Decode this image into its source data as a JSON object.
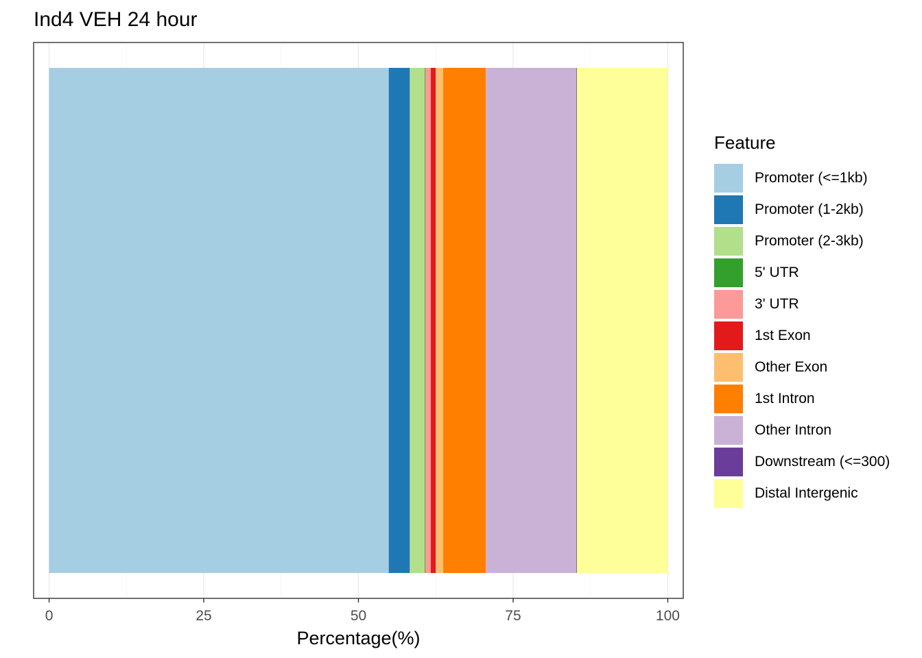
{
  "chart_data": {
    "type": "bar",
    "orientation": "horizontal",
    "stacked": true,
    "title": "Ind4 VEH 24 hour",
    "xlabel": "Percentage(%)",
    "ylabel": "",
    "xlim": [
      -2.5,
      102.5
    ],
    "xticks": [
      0,
      25,
      50,
      75,
      100
    ],
    "xtick_labels": [
      "0",
      "25",
      "50",
      "75",
      "100"
    ],
    "grid": true,
    "legend": {
      "title": "Feature",
      "position": "right"
    },
    "series": [
      {
        "name": "Promoter (<=1kb)",
        "value": 54.9,
        "color": "#A6CEE3"
      },
      {
        "name": "Promoter (1-2kb)",
        "value": 3.4,
        "color": "#1F78B4"
      },
      {
        "name": "Promoter (2-3kb)",
        "value": 2.4,
        "color": "#B2DF8A"
      },
      {
        "name": "5' UTR",
        "value": 0.1,
        "color": "#33A02C"
      },
      {
        "name": "3' UTR",
        "value": 0.9,
        "color": "#FB9A99"
      },
      {
        "name": "1st Exon",
        "value": 0.8,
        "color": "#E31A1C"
      },
      {
        "name": "Other Exon",
        "value": 1.2,
        "color": "#FDBF6F"
      },
      {
        "name": "1st Intron",
        "value": 6.9,
        "color": "#FF7F00"
      },
      {
        "name": "Other Intron",
        "value": 14.6,
        "color": "#CAB2D6"
      },
      {
        "name": "Downstream (<=300)",
        "value": 0.1,
        "color": "#6A3D9A"
      },
      {
        "name": "Distal Intergenic",
        "value": 14.7,
        "color": "#FFFF99"
      }
    ]
  }
}
